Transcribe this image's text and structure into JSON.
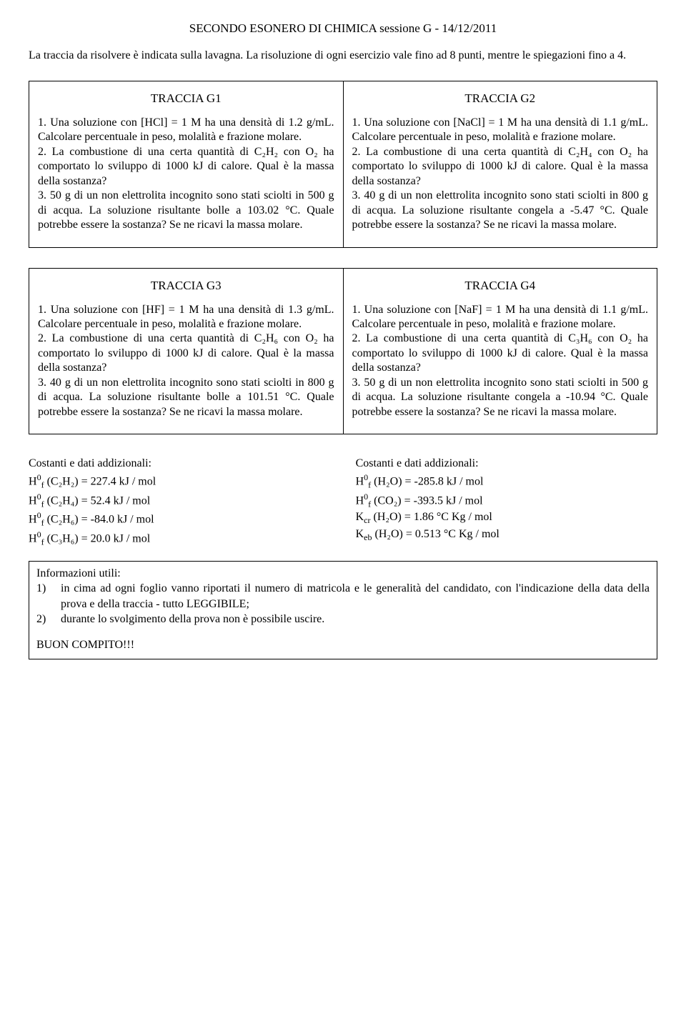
{
  "title": "SECONDO ESONERO DI CHIMICA sessione G - 14/12/2011",
  "intro": "La traccia da risolvere è indicata sulla lavagna. La risoluzione di ogni esercizio vale fino ad 8 punti, mentre le spiegazioni fino a 4.",
  "traccia": {
    "g1": {
      "title": "TRACCIA G1",
      "body": "1. Una soluzione con [HCl] = 1 M ha una densità di 1.2 g/mL. Calcolare percentuale in peso, molalità e frazione molare.\n2. La combustione di una certa quantità di C₂H₂ con O₂ ha comportato lo sviluppo di 1000 kJ di calore. Qual è la massa della sostanza?\n3. 50 g di un non elettrolita incognito sono stati sciolti in 500 g di acqua. La soluzione risultante bolle a 103.02 °C. Quale potrebbe essere la sostanza? Se ne ricavi la massa molare."
    },
    "g2": {
      "title": "TRACCIA G2",
      "body": "1. Una soluzione con [NaCl] = 1 M ha una densità di 1.1 g/mL. Calcolare percentuale in peso, molalità e frazione molare.\n2. La combustione di una certa quantità di C₂H₄ con O₂ ha comportato lo sviluppo di 1000 kJ di calore. Qual è la massa della sostanza?\n3. 40 g di un non elettrolita incognito sono stati sciolti in 800 g di acqua. La soluzione risultante congela a -5.47 °C. Quale potrebbe essere la sostanza? Se ne ricavi la massa molare."
    },
    "g3": {
      "title": "TRACCIA G3",
      "body": "1. Una soluzione con [HF] = 1 M ha una densità di 1.3 g/mL. Calcolare percentuale in peso, molalità e frazione molare.\n2. La combustione di una certa quantità di C₂H₆ con O₂ ha comportato lo sviluppo di 1000 kJ di calore. Qual è la massa della sostanza?\n3. 40 g di un non elettrolita incognito sono stati sciolti in 800 g di acqua. La soluzione risultante bolle a 101.51 °C. Quale potrebbe essere la sostanza? Se ne ricavi la massa molare."
    },
    "g4": {
      "title": "TRACCIA G4",
      "body": "1. Una soluzione con [NaF] = 1 M ha una densità di 1.1 g/mL. Calcolare percentuale in peso, molalità e frazione molare.\n2. La combustione di una certa quantità di C₃H₆ con O₂ ha comportato lo sviluppo di 1000 kJ di calore. Qual è la massa della sostanza?\n3. 50 g di un non elettrolita incognito sono stati sciolti in 500 g di acqua. La soluzione risultante congela a -10.94 °C. Quale potrebbe essere la sostanza? Se ne ricavi la massa molare."
    }
  },
  "constants": {
    "heading": "Costanti e dati addizionali:",
    "left": [
      "H⁰_f (C₂H₂) = 227.4 kJ / mol",
      "H⁰_f (C₂H₄) = 52.4 kJ / mol",
      "H⁰_f (C₂H₆) = -84.0 kJ / mol",
      "H⁰_f (C₃H₆) = 20.0 kJ / mol"
    ],
    "right": [
      "H⁰_f (H₂O) = -285.8 kJ / mol",
      "H⁰_f (CO₂) = -393.5 kJ / mol",
      "K_cr (H₂O) = 1.86 °C Kg / mol",
      "K_eb (H₂O) = 0.513 °C Kg / mol"
    ]
  },
  "info": {
    "heading": "Informazioni utili:",
    "items": [
      {
        "n": "1)",
        "t": "in cima ad ogni foglio vanno riportati il numero di matricola e le generalità del candidato, con l'indicazione della data della prova e della traccia - tutto LEGGIBILE;"
      },
      {
        "n": "2)",
        "t": "durante lo svolgimento della prova non è possibile uscire."
      }
    ],
    "footer": "BUON COMPITO!!!"
  }
}
